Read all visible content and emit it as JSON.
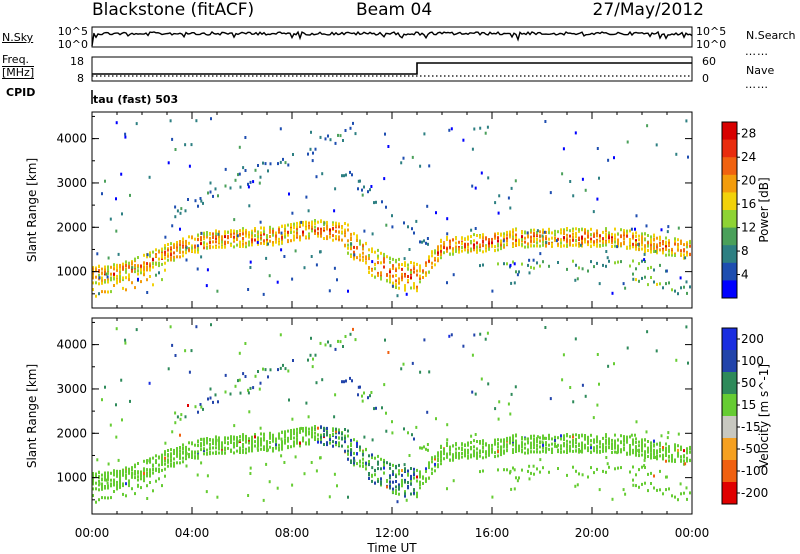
{
  "header": {
    "site": "Blackstone (fitACF)",
    "beam": "Beam 04",
    "date": "27/May/2012"
  },
  "noise_panel": {
    "left_label": "N.Sky",
    "right_label": "N.Search",
    "left_ticks": [
      "10^5",
      "10^0"
    ],
    "right_ticks": [
      "10^5",
      "10^0"
    ]
  },
  "freq_panel": {
    "left_label_line1": "Freq.",
    "left_label_line2": "[MHz]",
    "right_label": "Nave",
    "left_ticks": [
      "18",
      "8"
    ],
    "right_ticks": [
      "60",
      "0"
    ]
  },
  "cpid_panel": {
    "label": "CPID",
    "value": "tau (fast) 503"
  },
  "colors": {
    "power_scale": [
      "#0000ff",
      "#1e4eb0",
      "#2d7f82",
      "#4aa05a",
      "#8ed334",
      "#f2d20a",
      "#f39c0c",
      "#f06210",
      "#e82c0e",
      "#d80000"
    ],
    "velocity_scale": [
      "#e00000",
      "#f06010",
      "#f5a020",
      "#c8c8c0",
      "#66cc33",
      "#2e8a5a",
      "#2244aa",
      "#1a2ee0"
    ]
  },
  "chart_data": [
    {
      "type": "heatmap",
      "title": "",
      "xlabel": "",
      "ylabel": "Slant Range [km]",
      "x_ticks": [
        "00:00",
        "04:00",
        "08:00",
        "12:00",
        "16:00",
        "20:00",
        "00:00"
      ],
      "y_ticks": [
        "1000",
        "2000",
        "3000",
        "4000"
      ],
      "ylim": [
        180,
        4600
      ],
      "colorbar": {
        "label": "Power [dB]",
        "ticks": [
          "4",
          "8",
          "12",
          "16",
          "20",
          "24",
          "28"
        ],
        "range": [
          0,
          30
        ]
      },
      "series": [
        {
          "x": [
            0,
            1,
            2,
            3,
            4,
            5,
            6,
            7,
            8,
            9,
            10,
            11,
            12,
            13,
            14,
            15,
            16,
            17,
            18,
            19,
            20,
            21,
            22,
            23,
            24
          ],
          "y": [
            950,
            1000,
            1200,
            1450,
            1650,
            1780,
            1800,
            1820,
            1900,
            2000,
            1900,
            1300,
            1000,
            900,
            1600,
            1650,
            1700,
            1800,
            1780,
            1800,
            1800,
            1800,
            1700,
            1600,
            1500
          ]
        }
      ]
    },
    {
      "type": "heatmap",
      "title": "",
      "xlabel": "Time UT",
      "ylabel": "Slant Range [km]",
      "x_ticks": [
        "00:00",
        "04:00",
        "08:00",
        "12:00",
        "16:00",
        "20:00",
        "00:00"
      ],
      "y_ticks": [
        "1000",
        "2000",
        "3000",
        "4000"
      ],
      "ylim": [
        180,
        4600
      ],
      "colorbar": {
        "label": "Velocity [m s^-1]",
        "ticks": [
          "200",
          "100",
          "50",
          "15",
          "-15",
          "-50",
          "-100",
          "-200"
        ],
        "range": [
          -250,
          250
        ]
      }
    }
  ]
}
